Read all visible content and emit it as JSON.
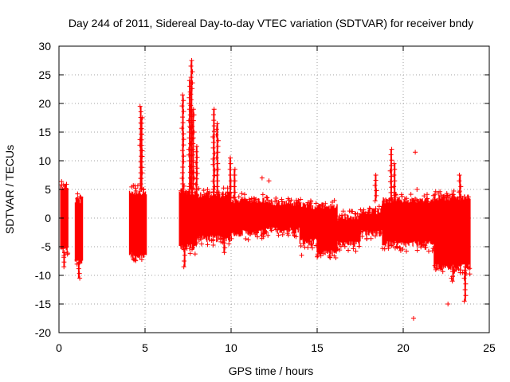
{
  "chart_data": {
    "type": "scatter",
    "title": "Day 244 of 2011, Sidereal Day-to-day VTEC variation (SDTVAR) for receiver bndy",
    "xlabel": "GPS time / hours",
    "ylabel": "SDTVAR / TECUs",
    "xlim": [
      0,
      25
    ],
    "ylim": [
      -20,
      30
    ],
    "xticks": [
      0,
      5,
      10,
      15,
      20,
      25
    ],
    "yticks": [
      -20,
      -15,
      -10,
      -5,
      0,
      5,
      10,
      15,
      20,
      25,
      30
    ],
    "grid": true,
    "marker": "+",
    "color": "#ff0000",
    "series": [
      {
        "name": "SDTVAR",
        "bands": [
          {
            "x": [
              0.1,
              0.55
            ],
            "low": -6.0,
            "high": 6.0
          },
          {
            "x": [
              0.95,
              1.4
            ],
            "low": -8.0,
            "high": 3.5
          },
          {
            "x": [
              4.1,
              5.1
            ],
            "low": -7.0,
            "high": 5.0
          },
          {
            "x": [
              7.0,
              8.0
            ],
            "low": -5.5,
            "high": 5.0
          },
          {
            "x": [
              8.0,
              10.0
            ],
            "low": -4.0,
            "high": 4.5
          },
          {
            "x": [
              10.0,
              12.0
            ],
            "low": -3.0,
            "high": 3.5
          },
          {
            "x": [
              12.0,
              14.0
            ],
            "low": -2.5,
            "high": 3.0
          },
          {
            "x": [
              14.0,
              15.0
            ],
            "low": -4.5,
            "high": 2.5
          },
          {
            "x": [
              15.0,
              16.2
            ],
            "low": -6.5,
            "high": 2.5
          },
          {
            "x": [
              16.2,
              17.5
            ],
            "low": -5.0,
            "high": 0.5
          },
          {
            "x": [
              17.5,
              18.8
            ],
            "low": -3.0,
            "high": 1.5
          },
          {
            "x": [
              18.8,
              21.8
            ],
            "low": -5.0,
            "high": 3.5
          },
          {
            "x": [
              21.8,
              23.9
            ],
            "low": -9.0,
            "high": 4.0
          }
        ],
        "spikes": [
          {
            "x": 4.75,
            "low": 5.0,
            "high": 19.5
          },
          {
            "x": 4.8,
            "low": 5.0,
            "high": 17.5
          },
          {
            "x": 7.2,
            "low": 5.0,
            "high": 21.5
          },
          {
            "x": 7.6,
            "low": 5.0,
            "high": 24.0
          },
          {
            "x": 7.7,
            "low": 5.0,
            "high": 27.5
          },
          {
            "x": 7.8,
            "low": 5.0,
            "high": 19.0
          },
          {
            "x": 8.0,
            "low": 4.0,
            "high": 12.5
          },
          {
            "x": 9.0,
            "low": 4.5,
            "high": 19.0
          },
          {
            "x": 9.2,
            "low": 4.5,
            "high": 16.5
          },
          {
            "x": 9.95,
            "low": 3.5,
            "high": 10.5
          },
          {
            "x": 10.2,
            "low": 3.5,
            "high": 8.5
          },
          {
            "x": 18.4,
            "low": 3.0,
            "high": 7.5
          },
          {
            "x": 19.3,
            "low": 3.5,
            "high": 12.0
          },
          {
            "x": 19.5,
            "low": 3.5,
            "high": 9.5
          },
          {
            "x": 23.3,
            "low": 3.5,
            "high": 7.5
          },
          {
            "x": 7.3,
            "low": -8.5,
            "high": -5.5
          },
          {
            "x": 9.6,
            "low": -6.0,
            "high": -3.5
          },
          {
            "x": 22.9,
            "low": -11.0,
            "high": -8.5
          },
          {
            "x": 23.6,
            "low": -14.5,
            "high": -8.5
          },
          {
            "x": 0.3,
            "low": -8.5,
            "high": -6.0
          },
          {
            "x": 1.15,
            "low": -10.5,
            "high": -8.0
          }
        ],
        "outliers": [
          {
            "x": 11.8,
            "y": 7.0
          },
          {
            "x": 14.1,
            "y": -6.5
          },
          {
            "x": 20.7,
            "y": 11.5
          },
          {
            "x": 20.6,
            "y": -17.5
          },
          {
            "x": 22.6,
            "y": -15.0
          },
          {
            "x": 22.8,
            "y": -10.5
          },
          {
            "x": 20.8,
            "y": 5.0
          },
          {
            "x": 12.2,
            "y": 6.5
          }
        ]
      }
    ]
  }
}
